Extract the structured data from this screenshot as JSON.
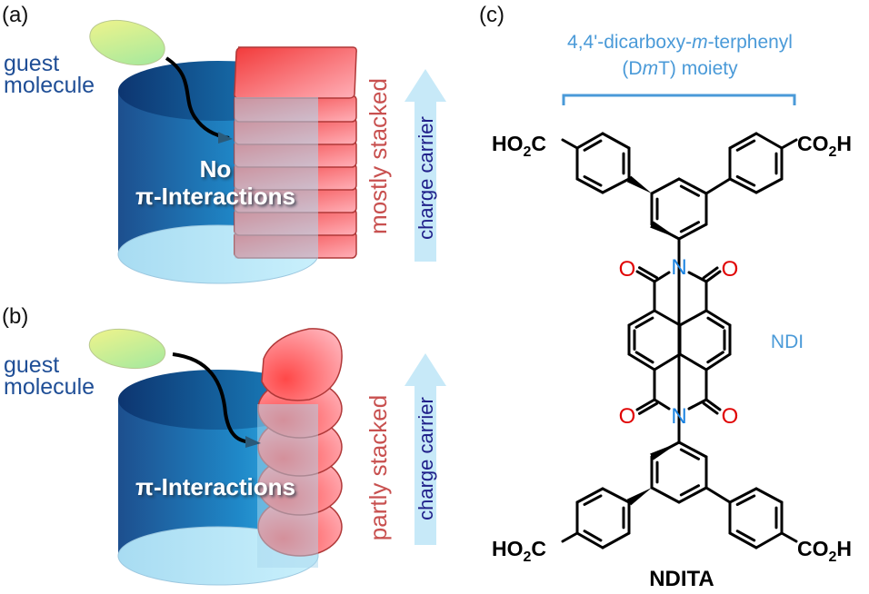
{
  "panels": {
    "a": "(a)",
    "b": "(b)",
    "c": "(c)"
  },
  "panel_a": {
    "guest_line1": "guest",
    "guest_line2": "molecule",
    "inner_line1": "No",
    "inner_line2": "π-Interactions",
    "stack_label": "mostly stacked",
    "arrow_label": "charge carrier"
  },
  "panel_b": {
    "guest_line1": "guest",
    "guest_line2": "molecule",
    "inner_line1": "π-Interactions",
    "stack_label": "partly stacked",
    "arrow_label": "charge carrier"
  },
  "panel_c": {
    "moiety_line1_a": "4,4'-dicarboxy-",
    "moiety_line1_m": "m",
    "moiety_line1_b": "-terphenyl",
    "moiety_line2_a": "(D",
    "moiety_line2_m": "m",
    "moiety_line2_b": "T) moiety",
    "core_label": "NDI",
    "group_left": {
      "a": "HO",
      "sub": "2",
      "b": "C"
    },
    "group_right": {
      "a": "CO",
      "sub": "2",
      "b": "H"
    },
    "atom_O": "O",
    "atom_N": "N",
    "compound_name": "NDITA"
  },
  "colors": {
    "cylinder": "#1a6fb0",
    "stack": "#f25a5a",
    "guest": "#d8f08a",
    "arrow": "#c7e9f8",
    "label_blue": "#4a9ad8",
    "oxygen": "#e00000",
    "nitrogen": "#1a82e0"
  }
}
